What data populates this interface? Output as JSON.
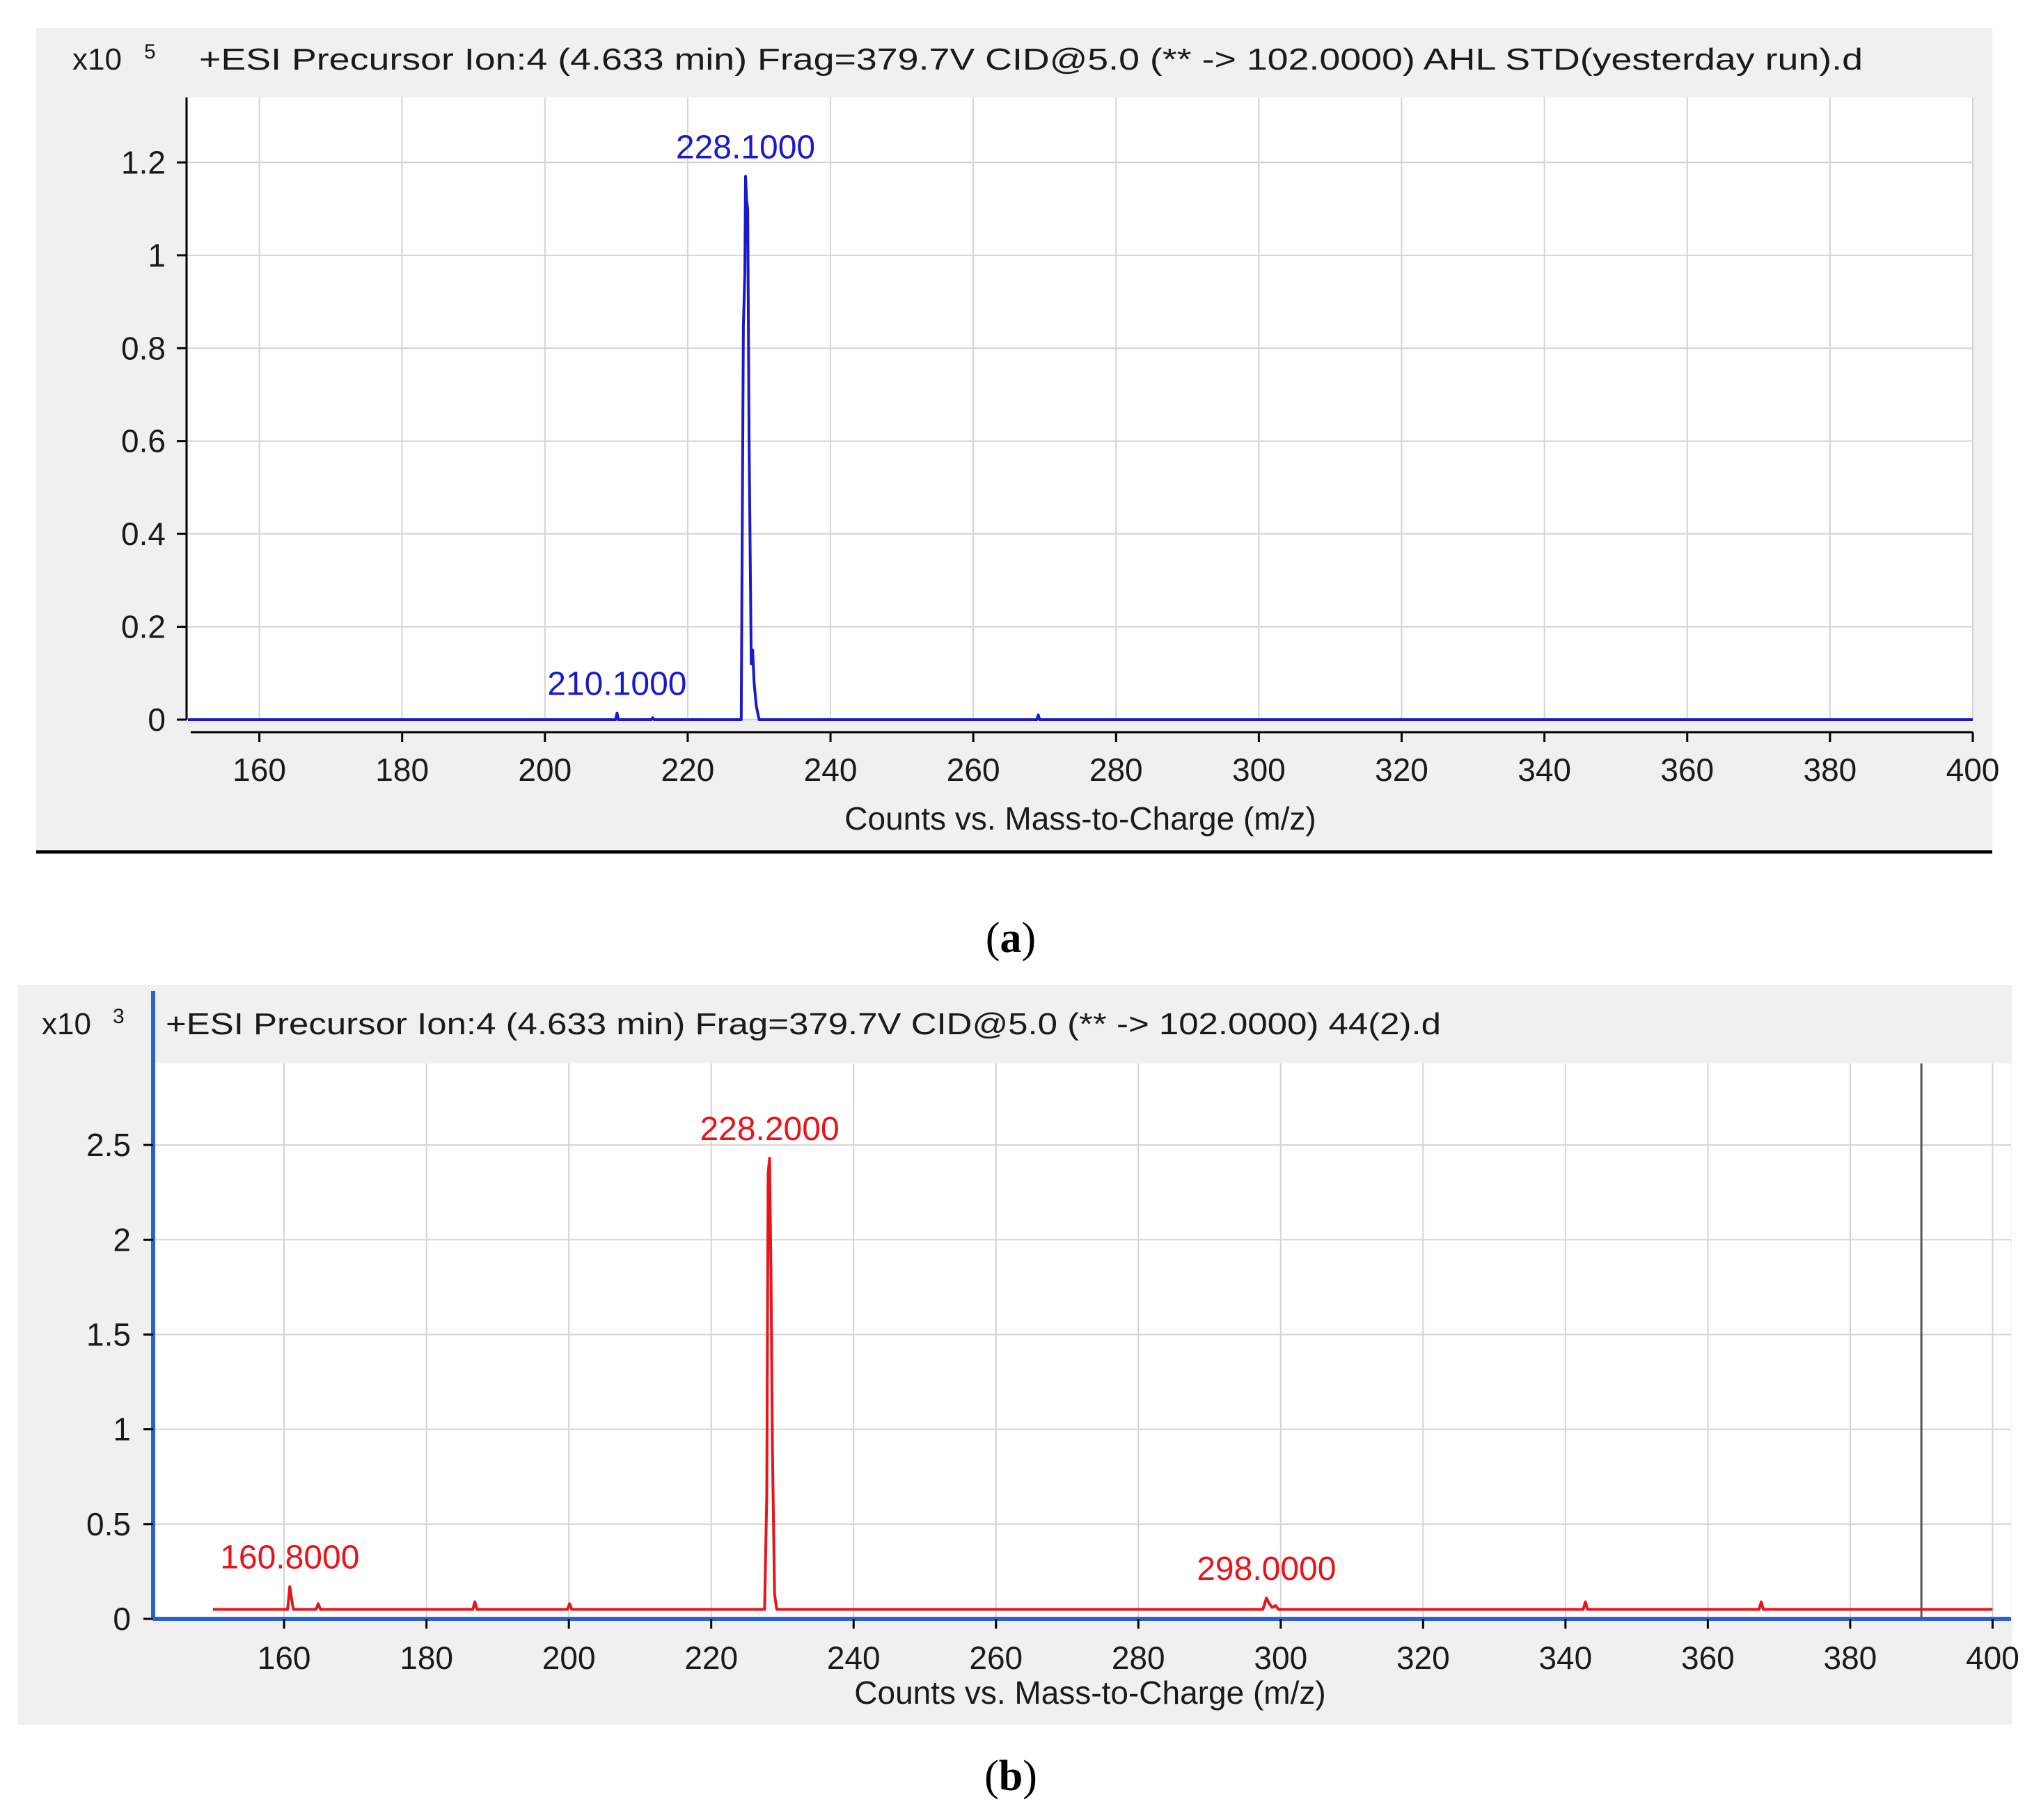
{
  "panels": [
    {
      "caption_letter": "a",
      "scale_base": "x10",
      "scale_exp": "5",
      "header": "+ESI Precursor Ion:4 (4.633 min) Frag=379.7V CID@5.0 (** -> 102.0000) AHL STD(yesterday run).d"
    },
    {
      "caption_letter": "b",
      "scale_base": "x10",
      "scale_exp": "3",
      "header": "+ESI Precursor Ion:4 (4.633 min) Frag=379.7V CID@5.0 (** -> 102.0000) 44(2).d"
    }
  ],
  "chart_data": [
    {
      "type": "line",
      "title": "+ESI Precursor Ion:4 (4.633 min) Frag=379.7V CID@5.0 (** -> 102.0000) AHL STD(yesterday run).d",
      "xlabel": "Counts vs. Mass-to-Charge (m/z)",
      "ylabel": "",
      "y_multiplier": "x10^5",
      "xlim": [
        150,
        400
      ],
      "ylim": [
        0,
        1.34
      ],
      "xticks": [
        160,
        180,
        200,
        220,
        240,
        260,
        280,
        300,
        320,
        340,
        360,
        380,
        400
      ],
      "xtick_labels": [
        "160",
        "180",
        "200",
        "220",
        "240",
        "260",
        "280",
        "300",
        "320",
        "340",
        "360",
        "380",
        "400"
      ],
      "yticks": [
        0,
        0.2,
        0.4,
        0.6,
        0.8,
        1.0,
        1.2
      ],
      "ytick_labels": [
        "0",
        "0.2",
        "0.4",
        "0.6",
        "0.8",
        "1",
        "1.2"
      ],
      "grid": true,
      "color": "#1a1acc",
      "series": [
        {
          "x": [
            150,
            209.9,
            210.1,
            210.3,
            214.9,
            215.1,
            215.3,
            227.5,
            227.8,
            228.0,
            228.1,
            228.25,
            228.4,
            228.6,
            228.9,
            229.1,
            229.3,
            229.6,
            230.0,
            268.9,
            269.1,
            269.3,
            400
          ],
          "y": [
            0.0,
            0.0,
            0.014,
            0.0,
            0.0,
            0.004,
            0.0,
            0.0,
            0.85,
            0.96,
            1.17,
            1.12,
            1.1,
            0.6,
            0.12,
            0.15,
            0.08,
            0.03,
            0.0,
            0.0,
            0.01,
            0.0,
            0.0
          ]
        }
      ],
      "annotations": [
        {
          "text": "228.1000",
          "x": 228.1,
          "y": 1.17
        },
        {
          "text": "210.1000",
          "x": 210.1,
          "y": 0.014
        }
      ]
    },
    {
      "type": "line",
      "title": "+ESI Precursor Ion:4 (4.633 min) Frag=379.7V CID@5.0 (** -> 102.0000) 44(2).d",
      "xlabel": "Counts vs. Mass-to-Charge (m/z)",
      "ylabel": "",
      "y_multiplier": "x10^3",
      "xlim": [
        141.8,
        402.6
      ],
      "ylim": [
        0,
        2.93
      ],
      "xticks": [
        160,
        180,
        200,
        220,
        240,
        260,
        280,
        300,
        320,
        340,
        360,
        380,
        400
      ],
      "xtick_labels": [
        "160",
        "180",
        "200",
        "220",
        "240",
        "260",
        "280",
        "300",
        "320",
        "340",
        "360",
        "380",
        "400"
      ],
      "yticks": [
        0,
        0.5,
        1.0,
        1.5,
        2.0,
        2.5
      ],
      "ytick_labels": [
        "0",
        "0.5",
        "1",
        "1.5",
        "2",
        "2.5"
      ],
      "grid": true,
      "color": "#e8141a",
      "baseline": 0.05,
      "marker_line_x": 390,
      "series": [
        {
          "x": [
            150,
            160.5,
            160.8,
            161.0,
            161.3,
            164.5,
            164.8,
            165.1,
            186.5,
            186.8,
            187.1,
            199.8,
            200.1,
            200.4,
            227.5,
            227.8,
            228.0,
            228.2,
            228.4,
            228.6,
            228.9,
            229.2,
            229.5,
            297.5,
            298.0,
            298.4,
            298.8,
            299.3,
            299.7,
            300.2,
            342.5,
            342.8,
            343.1,
            367.2,
            367.5,
            367.8,
            400
          ],
          "y": [
            0.05,
            0.05,
            0.17,
            0.12,
            0.05,
            0.05,
            0.08,
            0.05,
            0.05,
            0.09,
            0.05,
            0.05,
            0.08,
            0.05,
            0.05,
            0.66,
            2.35,
            2.43,
            1.8,
            0.9,
            0.13,
            0.05,
            0.05,
            0.05,
            0.11,
            0.08,
            0.06,
            0.07,
            0.05,
            0.05,
            0.05,
            0.09,
            0.05,
            0.05,
            0.09,
            0.05,
            0.05
          ]
        }
      ],
      "annotations": [
        {
          "text": "228.2000",
          "x": 228.2,
          "y": 2.43
        },
        {
          "text": "160.8000",
          "x": 160.8,
          "y": 0.17
        },
        {
          "text": "298.0000",
          "x": 298.0,
          "y": 0.11
        }
      ]
    }
  ]
}
